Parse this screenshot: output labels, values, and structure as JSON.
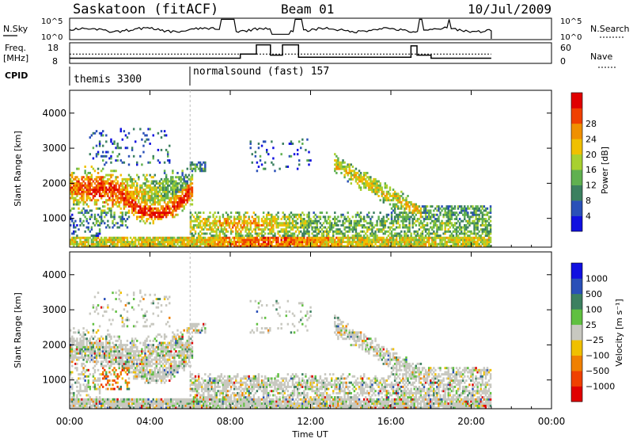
{
  "chart_data": {
    "type": "heatmap",
    "header": {
      "title": "Saskatoon (fitACF)",
      "beam": "Beam 01",
      "date": "10/Jul/2009"
    },
    "nsky_panel": {
      "label": "N.Sky",
      "left_ticks": [
        "10^5",
        "10^0"
      ],
      "right_ticks": [
        "10^5",
        "10^0"
      ],
      "right_label": "N.Search"
    },
    "freq_panel": {
      "label_lines": [
        "Freq.",
        "[MHz]"
      ],
      "left_ticks": [
        18,
        8
      ],
      "right_ticks": [
        60,
        0
      ],
      "right_label": "Nave"
    },
    "cpid_panel": {
      "label": "CPID",
      "modes": [
        {
          "name": "themis 3300",
          "start_hour": 0
        },
        {
          "name": "normalsound (fast) 157",
          "start_hour": 6
        }
      ]
    },
    "time_axis": {
      "label": "Time UT",
      "tick_labels": [
        "00:00",
        "04:00",
        "08:00",
        "12:00",
        "16:00",
        "20:00",
        "00:00"
      ],
      "range_hours": [
        0,
        24
      ],
      "data_end_hour": 21
    },
    "range_axis": {
      "label": "Slant Range [km]",
      "ticks": [
        1000,
        2000,
        3000,
        4000
      ],
      "range_km": [
        180,
        4650
      ]
    },
    "power_panel": {
      "colorbar_label": "Power [dB]",
      "colorbar_ticks": [
        "4",
        "8",
        "12",
        "16",
        "20",
        "24",
        "28"
      ],
      "colors": [
        "#1010e0",
        "#2a50b8",
        "#3c8060",
        "#60b050",
        "#a8d030",
        "#f0c000",
        "#f09000",
        "#f04000",
        "#e00000"
      ]
    },
    "velocity_panel": {
      "colorbar_label": "Velocity [m s⁻¹]",
      "colorbar_ticks": [
        "1000",
        "500",
        "100",
        "25",
        "−25",
        "−100",
        "−500",
        "−1000"
      ],
      "colors": [
        "#1010e0",
        "#2a50b8",
        "#3c8060",
        "#60c040",
        "#c8c8c0",
        "#f0c000",
        "#f08000",
        "#f04000",
        "#e00000"
      ]
    }
  }
}
